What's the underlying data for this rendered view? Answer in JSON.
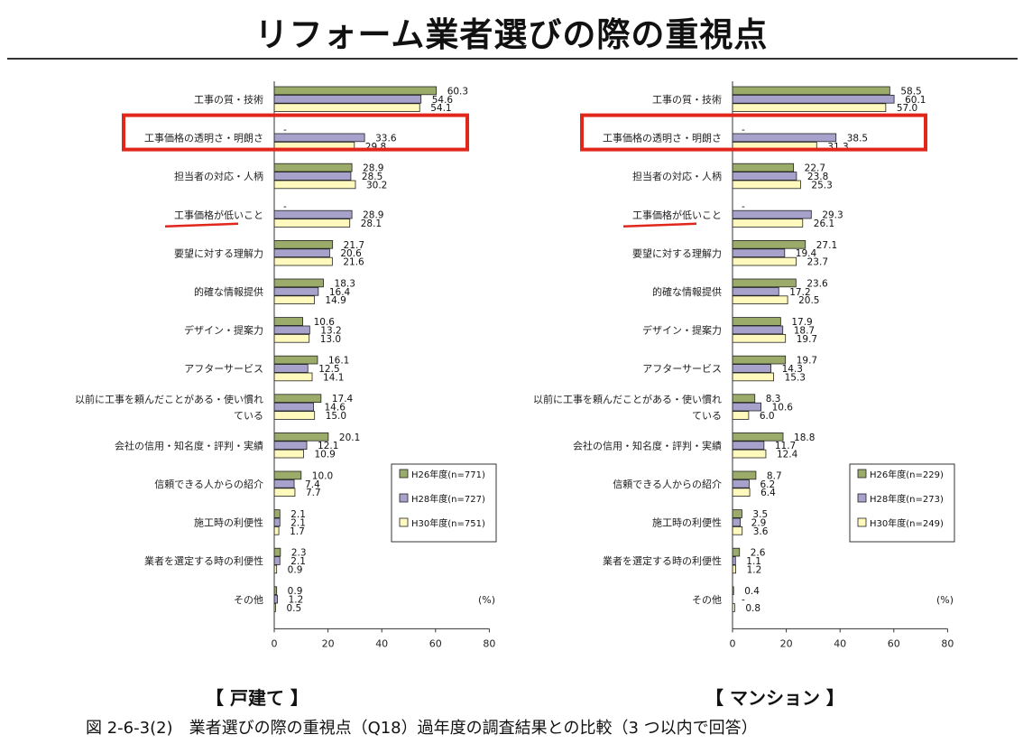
{
  "page": {
    "title": "リフォーム業者選びの際の重視点",
    "panel_labels": [
      "【 戸建て 】",
      "【 マンション 】"
    ],
    "caption": "図 2-6-3(2)　業者選びの際の重視点（Q18）過年度の調査結果との比較（3 つ以内で回答）",
    "colors": {
      "h26": "#9aab6a",
      "h28": "#a6a2cc",
      "h30": "#fff9bd",
      "highlight": "#e1261c"
    }
  },
  "chart_data": [
    {
      "type": "bar",
      "orientation": "horizontal",
      "unit_label": "(%)",
      "xlim": [
        0,
        80
      ],
      "x_ticks": [
        0,
        20,
        40,
        60,
        80
      ],
      "categories": [
        "工事の質・技術",
        "工事価格の透明さ・明朗さ",
        "担当者の対応・人柄",
        "工事価格が低いこと",
        "要望に対する理解力",
        "的確な情報提供",
        "デザイン・提案力",
        "アフターサービス",
        [
          "以前に工事を頼んだことがある・使い慣れ",
          "ている"
        ],
        "会社の信用・知名度・評判・実績",
        "信頼できる人からの紹介",
        "施工時の利便性",
        "業者を選定する時の利便性",
        "その他"
      ],
      "highlight_box_category": 1,
      "underline_category": 3,
      "series": [
        {
          "name": "H26年度(n=771)",
          "color": "#9aab6a",
          "values": [
            60.3,
            null,
            28.9,
            null,
            21.7,
            18.3,
            10.6,
            16.1,
            17.4,
            20.1,
            10.0,
            2.1,
            2.3,
            0.9
          ],
          "labels": [
            "60.3",
            "-",
            "28.9",
            "-",
            "21.7",
            "18.3",
            "10.6",
            "16.1",
            "17.4",
            "20.1",
            "10.0",
            "2.1",
            "2.3",
            "0.9"
          ]
        },
        {
          "name": "H28年度(n=727)",
          "color": "#a6a2cc",
          "values": [
            54.6,
            33.6,
            28.5,
            28.9,
            20.6,
            16.4,
            13.2,
            12.5,
            14.6,
            12.1,
            7.4,
            2.1,
            2.1,
            1.2
          ],
          "labels": [
            "54.6",
            "33.6",
            "28.5",
            "28.9",
            "20.6",
            "16.4",
            "13.2",
            "12.5",
            "14.6",
            "12.1",
            "7.4",
            "2.1",
            "2.1",
            "1.2"
          ]
        },
        {
          "name": "H30年度(n=751)",
          "color": "#fff9bd",
          "values": [
            54.1,
            29.8,
            30.2,
            28.1,
            21.6,
            14.9,
            13.0,
            14.1,
            15.0,
            10.9,
            7.7,
            1.7,
            0.9,
            0.5
          ],
          "labels": [
            "54.1",
            "29.8",
            "30.2",
            "28.1",
            "21.6",
            "14.9",
            "13.0",
            "14.1",
            "15.0",
            "10.9",
            "7.7",
            "1.7",
            "0.9",
            "0.5"
          ]
        }
      ]
    },
    {
      "type": "bar",
      "orientation": "horizontal",
      "unit_label": "(%)",
      "xlim": [
        0,
        80
      ],
      "x_ticks": [
        0,
        20,
        40,
        60,
        80
      ],
      "categories": [
        "工事の質・技術",
        "工事価格の透明さ・明朗さ",
        "担当者の対応・人柄",
        "工事価格が低いこと",
        "要望に対する理解力",
        "的確な情報提供",
        "デザイン・提案力",
        "アフターサービス",
        [
          "以前に工事を頼んだことがある・使い慣れ",
          "ている"
        ],
        "会社の信用・知名度・評判・実績",
        "信頼できる人からの紹介",
        "施工時の利便性",
        "業者を選定する時の利便性",
        "その他"
      ],
      "highlight_box_category": 1,
      "underline_category": 3,
      "series": [
        {
          "name": "H26年度(n=229)",
          "color": "#9aab6a",
          "values": [
            58.5,
            null,
            22.7,
            null,
            27.1,
            23.6,
            17.9,
            19.7,
            8.3,
            18.8,
            8.7,
            3.5,
            2.6,
            0.4
          ],
          "labels": [
            "58.5",
            "-",
            "22.7",
            "-",
            "27.1",
            "23.6",
            "17.9",
            "19.7",
            "8.3",
            "18.8",
            "8.7",
            "3.5",
            "2.6",
            "0.4"
          ]
        },
        {
          "name": "H28年度(n=273)",
          "color": "#a6a2cc",
          "values": [
            60.1,
            38.5,
            23.8,
            29.3,
            19.4,
            17.2,
            18.7,
            14.3,
            10.6,
            11.7,
            6.2,
            2.9,
            1.1,
            null
          ],
          "labels": [
            "60.1",
            "38.5",
            "23.8",
            "29.3",
            "19.4",
            "17.2",
            "18.7",
            "14.3",
            "10.6",
            "11.7",
            "6.2",
            "2.9",
            "1.1",
            "-"
          ]
        },
        {
          "name": "H30年度(n=249)",
          "color": "#fff9bd",
          "values": [
            57.0,
            31.3,
            25.3,
            26.1,
            23.7,
            20.5,
            19.7,
            15.3,
            6.0,
            12.4,
            6.4,
            3.6,
            1.2,
            0.8
          ],
          "labels": [
            "57.0",
            "31.3",
            "25.3",
            "26.1",
            "23.7",
            "20.5",
            "19.7",
            "15.3",
            "6.0",
            "12.4",
            "6.4",
            "3.6",
            "1.2",
            "0.8"
          ]
        }
      ]
    }
  ]
}
